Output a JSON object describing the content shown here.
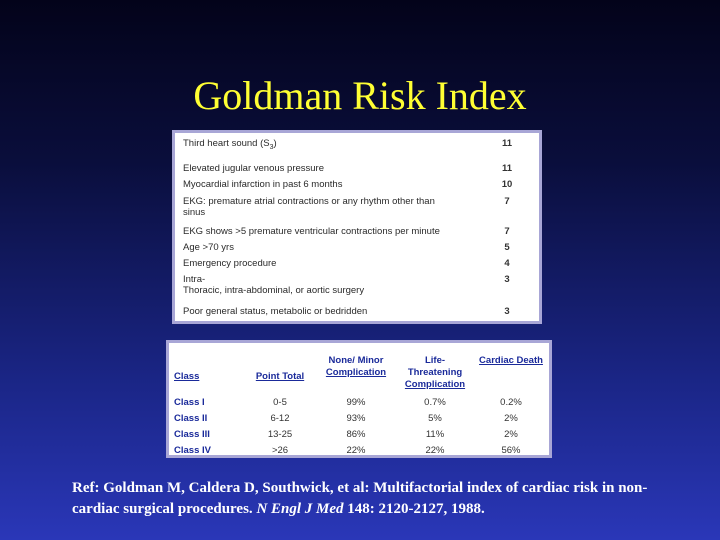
{
  "title": "Goldman Risk Index",
  "criteria": [
    {
      "label": "Third heart sound (S",
      "sub": "3",
      "label_tail": ")",
      "points": "11"
    },
    {
      "label": "Elevated jugular venous pressure",
      "points": "11"
    },
    {
      "label": "Myocardial infarction in past 6 months",
      "points": "10"
    },
    {
      "label": "EKG: premature atrial contractions or any rhythm other than",
      "label_2": "sinus",
      "points": "7"
    },
    {
      "label": "EKG shows >5 premature ventricular contractions per minute",
      "points": "7"
    },
    {
      "label": "Age >70 yrs",
      "points": "5"
    },
    {
      "label": "Emergency procedure",
      "points": "4"
    },
    {
      "label": "Intra-",
      "label_2": "Thoracic, intra-abdominal, or aortic surgery",
      "points": "3"
    },
    {
      "label": "Poor general status, metabolic or bedridden",
      "points": "3"
    }
  ],
  "class_table": {
    "headers": {
      "class": "Class",
      "point_total": "Point Total",
      "minor_1": "None/ Minor",
      "minor_2": "Complication",
      "life_1": "Life-",
      "life_2": "Threatening",
      "life_3": "Complication",
      "death": "Cardiac Death"
    },
    "rows": [
      {
        "cls": "Class I",
        "points": "0-5",
        "minor": "99%",
        "life": "0.7%",
        "death": "0.2%"
      },
      {
        "cls": "Class II",
        "points": "6-12",
        "minor": "93%",
        "life": "5%",
        "death": "2%"
      },
      {
        "cls": "Class III",
        "points": "13-25",
        "minor": "86%",
        "life": "11%",
        "death": "2%"
      },
      {
        "cls": "Class IV",
        "points": ">26",
        "minor": "22%",
        "life": "22%",
        "death": "56%"
      }
    ]
  },
  "reference": {
    "prefix": "Ref: Goldman M, Caldera D, Southwick, et al: Multifactorial index of cardiac risk in non-cardiac surgical procedures. ",
    "journal": "N Engl J Med",
    "suffix": " 148: 2120-2127, 1988."
  }
}
